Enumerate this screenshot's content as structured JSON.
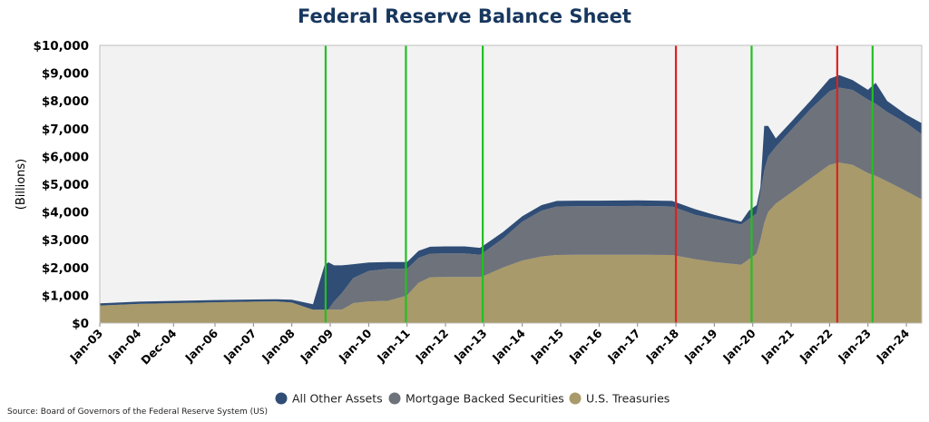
{
  "chart_data": {
    "type": "area",
    "stacked": true,
    "title": "Federal Reserve Balance Sheet",
    "ylabel": "(Billions)",
    "xlabel": "",
    "ylim": [
      0,
      10000
    ],
    "yticks": [
      0,
      1000,
      2000,
      3000,
      4000,
      5000,
      6000,
      7000,
      8000,
      9000,
      10000
    ],
    "ytick_labels": [
      "$0",
      "$1,000",
      "$2,000",
      "$3,000",
      "$4,000",
      "$5,000",
      "$6,000",
      "$7,000",
      "$8,000",
      "$9,000",
      "$10,000"
    ],
    "xlim": [
      2003.0,
      2024.4
    ],
    "xtick_values": [
      2003.0,
      2004.0,
      2004.92,
      2006.0,
      2007.0,
      2008.0,
      2009.0,
      2010.0,
      2011.0,
      2012.0,
      2013.0,
      2014.0,
      2015.0,
      2016.0,
      2017.0,
      2018.0,
      2019.0,
      2020.0,
      2021.0,
      2022.0,
      2023.0,
      2024.0
    ],
    "xtick_labels": [
      "Jan-03",
      "Jan-04",
      "Dec-04",
      "Jan-06",
      "Jan-07",
      "Jan-08",
      "Jan-09",
      "Jan-10",
      "Jan-11",
      "Jan-12",
      "Jan-13",
      "Jan-14",
      "Jan-15",
      "Jan-16",
      "Jan-17",
      "Jan-18",
      "Jan-19",
      "Jan-20",
      "Jan-21",
      "Jan-22",
      "Jan-23",
      "Jan-24"
    ],
    "x": [
      2003.0,
      2004.0,
      2005.0,
      2006.0,
      2007.0,
      2007.6,
      2008.0,
      2008.55,
      2008.7,
      2008.85,
      2008.95,
      2009.1,
      2009.3,
      2009.6,
      2010.0,
      2010.5,
      2010.9,
      2011.0,
      2011.3,
      2011.6,
      2012.0,
      2012.5,
      2012.9,
      2013.0,
      2013.5,
      2014.0,
      2014.5,
      2014.9,
      2015.5,
      2016.0,
      2017.0,
      2017.9,
      2018.5,
      2019.0,
      2019.7,
      2019.9,
      2020.1,
      2020.2,
      2020.3,
      2020.4,
      2020.6,
      2021.0,
      2021.5,
      2022.0,
      2022.25,
      2022.6,
      2023.0,
      2023.2,
      2023.5,
      2024.0,
      2024.4
    ],
    "series": [
      {
        "name": "U.S. Treasuries",
        "color": "#a89a6a",
        "values": [
          630,
          690,
          720,
          750,
          770,
          780,
          740,
          480,
          480,
          480,
          490,
          480,
          480,
          720,
          780,
          800,
          950,
          1000,
          1450,
          1650,
          1660,
          1660,
          1660,
          1700,
          2000,
          2250,
          2400,
          2450,
          2460,
          2460,
          2460,
          2450,
          2300,
          2200,
          2100,
          2300,
          2500,
          3000,
          3600,
          4000,
          4300,
          4700,
          5200,
          5700,
          5780,
          5700,
          5400,
          5300,
          5100,
          4750,
          4450
        ]
      },
      {
        "name": "Mortgage Backed Securities",
        "color": "#6e727a",
        "values": [
          0,
          0,
          0,
          0,
          0,
          0,
          0,
          0,
          0,
          0,
          0,
          300,
          600,
          900,
          1100,
          1150,
          1000,
          950,
          900,
          850,
          850,
          850,
          800,
          850,
          1050,
          1400,
          1650,
          1750,
          1750,
          1750,
          1760,
          1750,
          1600,
          1550,
          1450,
          1450,
          1450,
          1700,
          1900,
          2000,
          2050,
          2250,
          2500,
          2650,
          2700,
          2700,
          2650,
          2600,
          2500,
          2450,
          2350
        ]
      },
      {
        "name": "All Other Assets",
        "color": "#2f4d75",
        "values": [
          80,
          80,
          80,
          80,
          80,
          80,
          100,
          200,
          900,
          1600,
          1700,
          1300,
          1000,
          500,
          300,
          250,
          250,
          250,
          250,
          250,
          250,
          250,
          250,
          250,
          230,
          200,
          200,
          200,
          200,
          200,
          200,
          200,
          200,
          150,
          100,
          300,
          300,
          200,
          1600,
          1100,
          300,
          300,
          300,
          450,
          450,
          350,
          350,
          750,
          400,
          300,
          400
        ]
      }
    ],
    "vertical_lines": [
      {
        "x": 2008.88,
        "color": "#22c022"
      },
      {
        "x": 2010.97,
        "color": "#22c022"
      },
      {
        "x": 2012.97,
        "color": "#22c022"
      },
      {
        "x": 2018.0,
        "color": "#e02020"
      },
      {
        "x": 2019.97,
        "color": "#22c022"
      },
      {
        "x": 2022.2,
        "color": "#e02020"
      },
      {
        "x": 2023.12,
        "color": "#22c022"
      }
    ],
    "legend_position": "bottom",
    "grid": false,
    "source": "Source: Board of Governors of the Federal Reserve System (US)"
  }
}
